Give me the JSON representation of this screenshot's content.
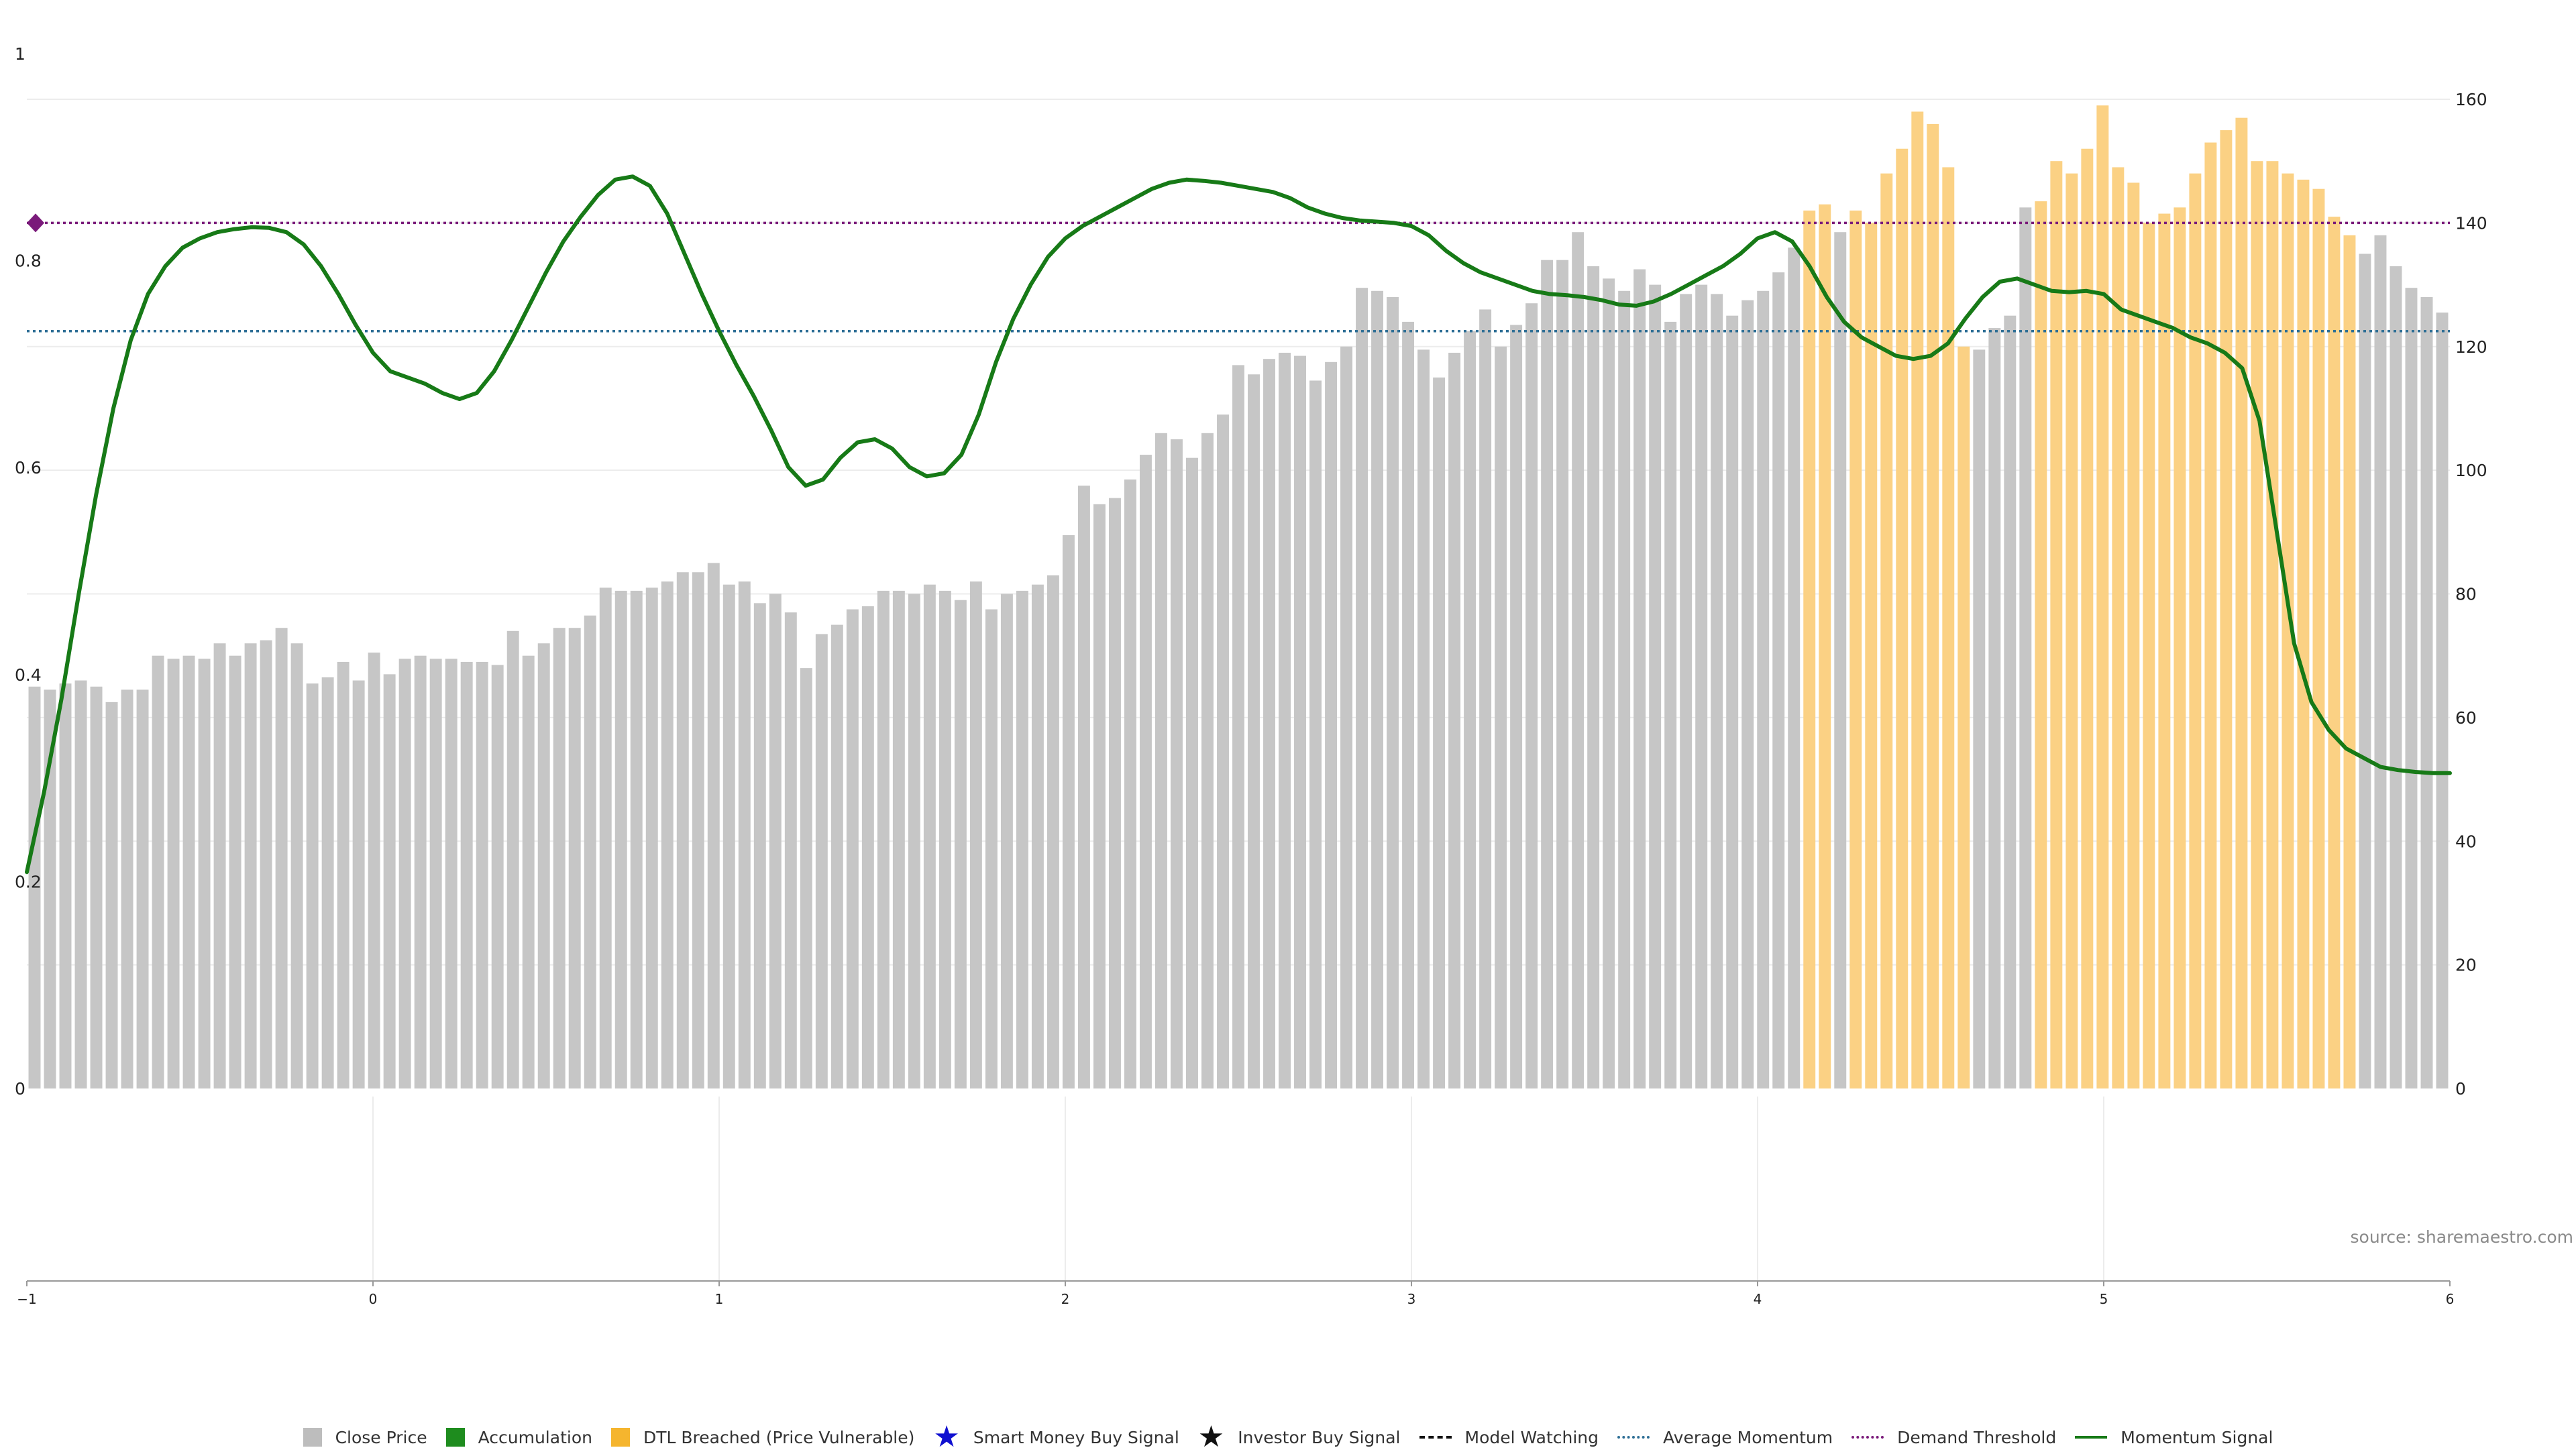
{
  "chart_data": {
    "type": "bar",
    "x_ticks": [
      "−1",
      "0",
      "1",
      "2",
      "3",
      "4",
      "5",
      "6"
    ],
    "xlim": [
      -1,
      6
    ],
    "left_axis": {
      "ticks": [
        "0",
        "0.2",
        "0.4",
        "0.6",
        "0.8",
        "1"
      ],
      "ylim": [
        0,
        1
      ]
    },
    "right_axis": {
      "ticks": [
        "0",
        "20",
        "40",
        "60",
        "80",
        "100",
        "120",
        "140",
        "160"
      ],
      "ylim": [
        0,
        160
      ]
    },
    "bar_states": [
      "Close Price",
      "DTL Breached (Price Vulnerable)"
    ],
    "series": [
      {
        "name": "Close Price",
        "type": "bar",
        "axis": "right",
        "values": [
          65,
          64.5,
          65.5,
          66,
          65,
          62.5,
          64.5,
          64.5,
          70,
          69.5,
          70,
          69.5,
          72,
          70,
          72,
          72.5,
          74.5,
          72,
          65.5,
          66.5,
          69,
          66,
          70.5,
          67,
          69.5,
          70,
          69.5,
          69.5,
          69,
          69,
          68.5,
          74,
          70,
          72,
          74.5,
          74.5,
          76.5,
          81,
          80.5,
          80.5,
          81,
          82,
          83.5,
          83.5,
          85,
          81.5,
          82,
          78.5,
          80,
          77,
          68,
          73.5,
          75,
          77.5,
          78,
          80.5,
          80.5,
          80,
          81.5,
          80.5,
          79,
          82,
          77.5,
          80,
          80.5,
          81.5,
          83,
          89.5,
          97.5,
          94.5,
          95.5,
          98.5,
          102.5,
          106,
          105,
          102,
          106,
          109,
          117,
          115.5,
          118,
          119,
          118.5,
          114.5,
          117.5,
          120,
          129.5,
          129,
          128,
          124,
          119.5,
          115,
          119,
          122.5,
          126,
          120,
          123.5,
          127,
          134,
          134,
          138.5,
          133,
          131,
          129,
          132.5,
          130,
          124,
          128.5,
          130,
          128.5,
          125,
          127.5,
          129,
          132,
          136,
          142,
          143,
          138.5,
          142,
          140,
          148,
          152,
          158,
          156,
          149,
          120,
          119.5,
          123,
          125,
          142.5,
          143.5,
          150,
          148,
          152,
          159,
          149,
          146.5,
          140,
          141.5,
          142.5,
          148,
          153,
          155,
          157,
          150,
          150,
          148,
          147,
          145.5,
          141,
          138,
          135,
          138,
          133,
          129.5,
          128,
          125.5
        ],
        "states": [
          0,
          0,
          0,
          0,
          0,
          0,
          0,
          0,
          0,
          0,
          0,
          0,
          0,
          0,
          0,
          0,
          0,
          0,
          0,
          0,
          0,
          0,
          0,
          0,
          0,
          0,
          0,
          0,
          0,
          0,
          0,
          0,
          0,
          0,
          0,
          0,
          0,
          0,
          0,
          0,
          0,
          0,
          0,
          0,
          0,
          0,
          0,
          0,
          0,
          0,
          0,
          0,
          0,
          0,
          0,
          0,
          0,
          0,
          0,
          0,
          0,
          0,
          0,
          0,
          0,
          0,
          0,
          0,
          0,
          0,
          0,
          0,
          0,
          0,
          0,
          0,
          0,
          0,
          0,
          0,
          0,
          0,
          0,
          0,
          0,
          0,
          0,
          0,
          0,
          0,
          0,
          0,
          0,
          0,
          0,
          0,
          0,
          0,
          0,
          0,
          0,
          0,
          0,
          0,
          0,
          0,
          0,
          0,
          0,
          0,
          0,
          0,
          0,
          0,
          0,
          1,
          1,
          0,
          1,
          1,
          1,
          1,
          1,
          1,
          1,
          1,
          0,
          0,
          0,
          0,
          1,
          1,
          1,
          1,
          1,
          1,
          1,
          1,
          1,
          1,
          1,
          1,
          1,
          1,
          1,
          1,
          1,
          1,
          1,
          1,
          1,
          0,
          0,
          0,
          0,
          0,
          0,
          0
        ]
      },
      {
        "name": "Momentum Signal",
        "type": "line",
        "axis": "right",
        "points": [
          [
            -1,
            35
          ],
          [
            -0.95,
            48
          ],
          [
            -0.9,
            63
          ],
          [
            -0.85,
            80
          ],
          [
            -0.8,
            96
          ],
          [
            -0.75,
            110
          ],
          [
            -0.7,
            121
          ],
          [
            -0.65,
            128.5
          ],
          [
            -0.6,
            133
          ],
          [
            -0.55,
            136
          ],
          [
            -0.5,
            137.5
          ],
          [
            -0.45,
            138.5
          ],
          [
            -0.4,
            139
          ],
          [
            -0.35,
            139.3
          ],
          [
            -0.3,
            139.2
          ],
          [
            -0.25,
            138.5
          ],
          [
            -0.2,
            136.5
          ],
          [
            -0.15,
            133
          ],
          [
            -0.1,
            128.5
          ],
          [
            -0.05,
            123.5
          ],
          [
            0,
            119
          ],
          [
            0.05,
            116
          ],
          [
            0.1,
            115
          ],
          [
            0.15,
            114
          ],
          [
            0.2,
            112.5
          ],
          [
            0.25,
            111.5
          ],
          [
            0.3,
            112.5
          ],
          [
            0.35,
            116
          ],
          [
            0.4,
            121
          ],
          [
            0.45,
            126.5
          ],
          [
            0.5,
            132
          ],
          [
            0.55,
            137
          ],
          [
            0.6,
            141
          ],
          [
            0.65,
            144.5
          ],
          [
            0.7,
            147
          ],
          [
            0.75,
            147.5
          ],
          [
            0.8,
            146
          ],
          [
            0.85,
            141.5
          ],
          [
            0.9,
            135
          ],
          [
            0.95,
            128.5
          ],
          [
            1,
            122.5
          ],
          [
            1.05,
            117
          ],
          [
            1.1,
            112
          ],
          [
            1.15,
            106.5
          ],
          [
            1.2,
            100.5
          ],
          [
            1.25,
            97.5
          ],
          [
            1.3,
            98.5
          ],
          [
            1.35,
            102
          ],
          [
            1.4,
            104.5
          ],
          [
            1.45,
            105
          ],
          [
            1.5,
            103.5
          ],
          [
            1.55,
            100.5
          ],
          [
            1.6,
            99
          ],
          [
            1.65,
            99.5
          ],
          [
            1.7,
            102.5
          ],
          [
            1.75,
            109
          ],
          [
            1.8,
            117.5
          ],
          [
            1.85,
            124.5
          ],
          [
            1.9,
            130
          ],
          [
            1.95,
            134.5
          ],
          [
            2,
            137.5
          ],
          [
            2.05,
            139.5
          ],
          [
            2.1,
            141
          ],
          [
            2.15,
            142.5
          ],
          [
            2.2,
            144
          ],
          [
            2.25,
            145.5
          ],
          [
            2.3,
            146.5
          ],
          [
            2.35,
            147
          ],
          [
            2.4,
            146.8
          ],
          [
            2.45,
            146.5
          ],
          [
            2.5,
            146
          ],
          [
            2.55,
            145.5
          ],
          [
            2.6,
            145
          ],
          [
            2.65,
            144
          ],
          [
            2.7,
            142.5
          ],
          [
            2.75,
            141.5
          ],
          [
            2.8,
            140.8
          ],
          [
            2.85,
            140.4
          ],
          [
            2.9,
            140.2
          ],
          [
            2.95,
            140
          ],
          [
            3,
            139.5
          ],
          [
            3.05,
            138
          ],
          [
            3.1,
            135.5
          ],
          [
            3.15,
            133.5
          ],
          [
            3.2,
            132
          ],
          [
            3.25,
            131
          ],
          [
            3.3,
            130
          ],
          [
            3.35,
            129
          ],
          [
            3.4,
            128.5
          ],
          [
            3.45,
            128.3
          ],
          [
            3.5,
            128
          ],
          [
            3.55,
            127.5
          ],
          [
            3.6,
            126.8
          ],
          [
            3.65,
            126.6
          ],
          [
            3.7,
            127.3
          ],
          [
            3.75,
            128.5
          ],
          [
            3.8,
            130
          ],
          [
            3.85,
            131.5
          ],
          [
            3.9,
            133
          ],
          [
            3.95,
            135
          ],
          [
            4,
            137.5
          ],
          [
            4.05,
            138.5
          ],
          [
            4.1,
            137
          ],
          [
            4.15,
            133
          ],
          [
            4.2,
            128
          ],
          [
            4.25,
            124
          ],
          [
            4.3,
            121.5
          ],
          [
            4.35,
            120
          ],
          [
            4.4,
            118.5
          ],
          [
            4.45,
            118
          ],
          [
            4.5,
            118.5
          ],
          [
            4.55,
            120.5
          ],
          [
            4.6,
            124.5
          ],
          [
            4.65,
            128
          ],
          [
            4.7,
            130.5
          ],
          [
            4.75,
            131
          ],
          [
            4.8,
            130
          ],
          [
            4.85,
            129
          ],
          [
            4.9,
            128.8
          ],
          [
            4.95,
            129
          ],
          [
            5,
            128.5
          ],
          [
            5.05,
            126
          ],
          [
            5.1,
            125
          ],
          [
            5.15,
            124
          ],
          [
            5.2,
            123
          ],
          [
            5.25,
            121.5
          ],
          [
            5.3,
            120.5
          ],
          [
            5.35,
            119
          ],
          [
            5.4,
            116.5
          ],
          [
            5.45,
            108
          ],
          [
            5.5,
            90
          ],
          [
            5.55,
            72
          ],
          [
            5.6,
            62.5
          ],
          [
            5.65,
            58
          ],
          [
            5.7,
            55
          ],
          [
            5.75,
            53.5
          ],
          [
            5.8,
            52
          ],
          [
            5.85,
            51.5
          ],
          [
            5.9,
            51.2
          ],
          [
            5.95,
            51
          ],
          [
            6,
            51
          ]
        ]
      },
      {
        "name": "Average Momentum",
        "type": "hline",
        "axis": "right",
        "value": 122.5
      },
      {
        "name": "Demand Threshold",
        "type": "hline",
        "axis": "right",
        "value": 140
      }
    ],
    "legend": {
      "placement": "bottom",
      "items": [
        {
          "label": "Close Price",
          "swatch": "square",
          "color": "#bdbdbd"
        },
        {
          "label": "Accumulation",
          "swatch": "square",
          "color": "#1e8c1e"
        },
        {
          "label": "DTL Breached (Price Vulnerable)",
          "swatch": "square",
          "color": "#f5b52e"
        },
        {
          "label": "Smart Money Buy Signal",
          "swatch": "star",
          "color": "#1010d0"
        },
        {
          "label": "Investor Buy Signal",
          "swatch": "star",
          "color": "#111111"
        },
        {
          "label": "Model Watching",
          "swatch": "dashed",
          "color": "#111111"
        },
        {
          "label": "Average Momentum",
          "swatch": "dotted",
          "color": "#2e6f96"
        },
        {
          "label": "Demand Threshold",
          "swatch": "dotted",
          "color": "#7a1a7a"
        },
        {
          "label": "Momentum Signal",
          "swatch": "solid",
          "color": "#177a17"
        }
      ]
    },
    "source": "source: sharemaestro.com",
    "grid": true,
    "colors": {
      "close_bar": "#c6c6c6",
      "dtl_bar": "#fbd184",
      "momentum_line": "#177a17",
      "avg_line": "#2e6f96",
      "threshold_line": "#7a1a7a",
      "threshold_marker": "#7a1a7a",
      "grid": "#ececec",
      "axis": "#999999"
    }
  }
}
